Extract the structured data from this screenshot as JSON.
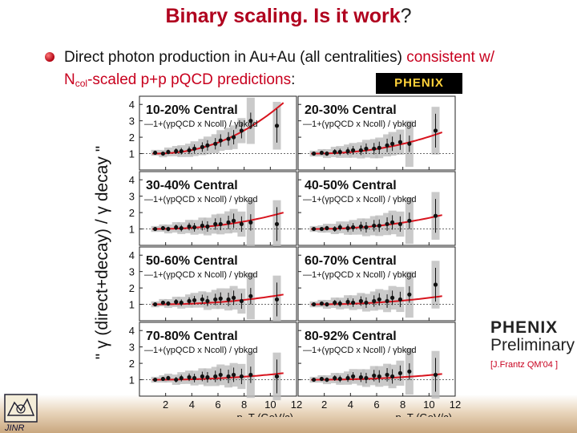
{
  "slide": {
    "title_main": "Binary scaling. Is it work",
    "title_end": "?",
    "bullet_line1_a": "Direct photon production in Au+Au (all centralities) ",
    "bullet_line1_b": "consistent w/",
    "bullet_line2_a": "N",
    "bullet_line2_sub": "col",
    "bullet_line2_b": "-scaled p+p pQCD predictions",
    "bullet_line2_c": ":",
    "logo_text": "PHENIX",
    "preliminary_logo": "PHENIX",
    "preliminary_word": "Preliminary",
    "preliminary_ref": "[J.Frantz QM'04 ]",
    "institute": "JINR"
  },
  "chart_data": {
    "type": "scatter",
    "ylabel": "\" γ (direct+decay) / γ decay \"",
    "xlabel": "p_T (GeV/c)",
    "xlim": [
      0,
      12
    ],
    "ylim": [
      0,
      4.5
    ],
    "xticks": [
      2,
      4,
      6,
      8,
      10,
      12
    ],
    "yticks": [
      1,
      2,
      3,
      4
    ],
    "curve_label": "1+(γpQCD x Ncoll) / γbkgd",
    "panels": [
      {
        "label": "10-20% Central",
        "curve_end": 4.1,
        "x": [
          1.2,
          1.8,
          2.2,
          2.8,
          3.2,
          3.8,
          4.2,
          4.8,
          5.2,
          5.8,
          6.2,
          6.8,
          7.2,
          7.8,
          8.5,
          10.5
        ],
        "y": [
          1.05,
          1.0,
          1.1,
          1.15,
          1.15,
          1.2,
          1.3,
          1.4,
          1.5,
          1.6,
          1.8,
          1.9,
          2.0,
          2.4,
          3.0,
          2.7
        ]
      },
      {
        "label": "20-30% Central",
        "curve_end": 2.3,
        "x": [
          1.2,
          1.8,
          2.2,
          2.8,
          3.2,
          3.8,
          4.2,
          4.8,
          5.2,
          5.8,
          6.2,
          6.8,
          7.2,
          7.8,
          8.5,
          10.5
        ],
        "y": [
          1.0,
          1.05,
          1.0,
          1.1,
          1.1,
          1.15,
          1.2,
          1.2,
          1.3,
          1.3,
          1.35,
          1.5,
          1.6,
          1.7,
          1.6,
          2.4
        ]
      },
      {
        "label": "30-40% Central",
        "curve_end": 2.0,
        "x": [
          1.2,
          1.8,
          2.2,
          2.8,
          3.2,
          3.8,
          4.2,
          4.8,
          5.2,
          5.8,
          6.2,
          6.8,
          7.2,
          7.8,
          8.5,
          10.5
        ],
        "y": [
          1.0,
          1.05,
          1.0,
          1.1,
          1.05,
          1.15,
          1.1,
          1.2,
          1.15,
          1.3,
          1.3,
          1.4,
          1.5,
          1.3,
          1.4,
          1.3
        ]
      },
      {
        "label": "40-50% Central",
        "curve_end": 1.85,
        "x": [
          1.2,
          1.8,
          2.2,
          2.8,
          3.2,
          3.8,
          4.2,
          4.8,
          5.2,
          5.8,
          6.2,
          6.8,
          7.2,
          7.8,
          8.5,
          10.5
        ],
        "y": [
          1.0,
          1.0,
          1.05,
          1.0,
          1.1,
          1.05,
          1.1,
          1.15,
          1.1,
          1.2,
          1.2,
          1.3,
          1.4,
          1.3,
          1.5,
          1.8
        ]
      },
      {
        "label": "50-60% Central",
        "curve_end": 1.6,
        "x": [
          1.2,
          1.8,
          2.2,
          2.8,
          3.2,
          3.8,
          4.2,
          4.8,
          5.2,
          5.8,
          6.2,
          6.8,
          7.2,
          7.8,
          8.5,
          10.5
        ],
        "y": [
          1.0,
          1.1,
          1.05,
          1.15,
          1.1,
          1.2,
          1.25,
          1.3,
          1.2,
          1.3,
          1.35,
          1.3,
          1.4,
          1.2,
          1.5,
          1.3
        ]
      },
      {
        "label": "60-70% Central",
        "curve_end": 1.5,
        "x": [
          1.2,
          1.8,
          2.2,
          2.8,
          3.2,
          3.8,
          4.2,
          4.8,
          5.2,
          5.8,
          6.2,
          6.8,
          7.2,
          7.8,
          8.5,
          10.5
        ],
        "y": [
          1.0,
          1.05,
          1.0,
          1.1,
          1.05,
          1.15,
          1.1,
          1.2,
          1.1,
          1.2,
          1.3,
          1.2,
          1.4,
          1.3,
          1.6,
          2.2
        ]
      },
      {
        "label": "70-80% Central",
        "curve_end": 1.4,
        "x": [
          1.2,
          1.8,
          2.2,
          2.8,
          3.2,
          3.8,
          4.2,
          4.8,
          5.2,
          5.8,
          6.2,
          6.8,
          7.2,
          7.8,
          8.5,
          10.5
        ],
        "y": [
          1.0,
          1.05,
          1.1,
          1.0,
          1.1,
          1.15,
          1.1,
          1.2,
          1.15,
          1.2,
          1.3,
          1.2,
          1.3,
          1.2,
          1.3,
          1.2
        ]
      },
      {
        "label": "80-92% Central",
        "curve_end": 1.35,
        "x": [
          1.2,
          1.8,
          2.2,
          2.8,
          3.2,
          3.8,
          4.2,
          4.8,
          5.2,
          5.8,
          6.2,
          6.8,
          7.2,
          7.8,
          8.5,
          10.5
        ],
        "y": [
          1.0,
          1.05,
          1.0,
          1.1,
          1.05,
          1.1,
          1.2,
          1.15,
          1.1,
          1.25,
          1.2,
          1.3,
          1.2,
          1.4,
          1.5,
          1.3
        ]
      }
    ],
    "grid": false,
    "colors": {
      "curve": "#d8141e",
      "points": "#111111",
      "error_box": "#bdbdbd",
      "title_red": "#b0001e"
    }
  }
}
